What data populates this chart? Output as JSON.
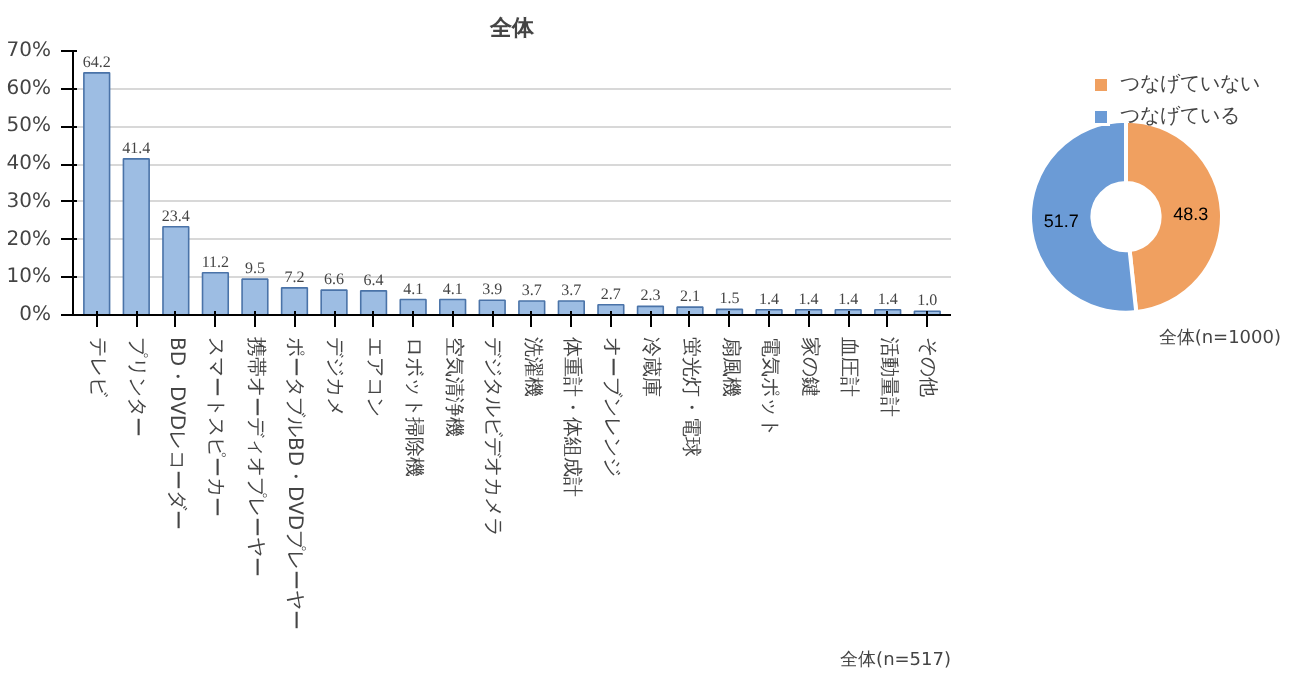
{
  "chart_data": [
    {
      "type": "bar",
      "title": "全体",
      "categories": [
        "テレビ",
        "プリンター",
        "BD・DVDレコーダー",
        "スマートスピーカー",
        "携帯オーディオプレーヤー",
        "ポータブルBD・DVDプレーヤー",
        "デジカメ",
        "エアコン",
        "ロボット掃除機",
        "空気清浄機",
        "デジタルビデオカメラ",
        "洗濯機",
        "体重計・体組成計",
        "オーブンレンジ",
        "冷蔵庫",
        "蛍光灯・電球",
        "扇風機",
        "電気ポット",
        "家の鍵",
        "血圧計",
        "活動量計",
        "その他"
      ],
      "values": [
        64.2,
        41.4,
        23.4,
        11.2,
        9.5,
        7.2,
        6.6,
        6.4,
        4.1,
        4.1,
        3.9,
        3.7,
        3.7,
        2.7,
        2.3,
        2.1,
        1.5,
        1.4,
        1.4,
        1.4,
        1.4,
        1.0
      ],
      "color": "#9dbde3",
      "ylim": [
        0,
        70
      ],
      "yticks": [
        {
          "value": 0,
          "label": "0%"
        },
        {
          "value": 10,
          "label": "10%"
        },
        {
          "value": 20,
          "label": "20%"
        },
        {
          "value": 30,
          "label": "30%"
        },
        {
          "value": 40,
          "label": "40%"
        },
        {
          "value": 50,
          "label": "50%"
        },
        {
          "value": 60,
          "label": "60%"
        },
        {
          "value": 70,
          "label": "70%"
        }
      ],
      "grid": "y",
      "value_labels": [
        "64.2",
        "41.4",
        "23.4",
        "11.2",
        "9.5",
        "7.2",
        "6.6",
        "6.4",
        "4.1",
        "4.1",
        "3.9",
        "3.7",
        "3.7",
        "2.7",
        "2.3",
        "2.1",
        "1.5",
        "1.4",
        "1.4",
        "1.4",
        "1.4",
        "1.0"
      ],
      "annotations": [
        "全体(n=517)"
      ]
    },
    {
      "type": "donut",
      "categories": [
        "つなげていない",
        "つなげている"
      ],
      "values": [
        48.3,
        51.7
      ],
      "colors": [
        "#f0a060",
        "#6b9bd6"
      ],
      "data_labels": true,
      "legend": "top right",
      "annotations": [
        "全体(n=1000)"
      ]
    }
  ]
}
